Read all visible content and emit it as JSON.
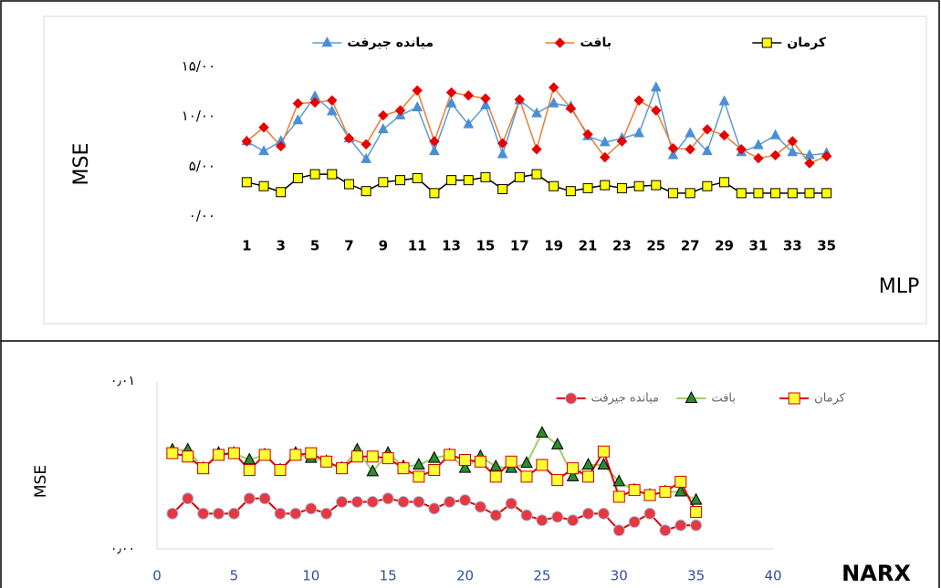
{
  "chart_data": [
    {
      "type": "line",
      "x_label": "MLP",
      "y_label": "MSE",
      "x": [
        1,
        2,
        3,
        4,
        5,
        6,
        7,
        8,
        9,
        10,
        11,
        12,
        13,
        14,
        15,
        16,
        17,
        18,
        19,
        20,
        21,
        22,
        23,
        24,
        25,
        26,
        27,
        28,
        29,
        30,
        31,
        32,
        33,
        34,
        35
      ],
      "xlim": [
        0.5,
        35.5
      ],
      "xticks": [
        1,
        3,
        5,
        7,
        9,
        11,
        13,
        15,
        17,
        19,
        21,
        23,
        25,
        27,
        29,
        31,
        33,
        35
      ],
      "ylim": [
        0,
        15
      ],
      "yticks": [
        {
          "value": 0,
          "label": "۰/۰۰"
        },
        {
          "value": 5,
          "label": "۵/۰۰"
        },
        {
          "value": 10,
          "label": "۱۰/۰۰"
        },
        {
          "value": 15,
          "label": "۱۵/۰۰"
        }
      ],
      "grid": false,
      "series": [
        {
          "name": "میانده جیرفت",
          "color": "#5b9bd5",
          "marker": "triangle",
          "marker_fill": "#4a8fd6",
          "marker_stroke": "#4a8fd6",
          "values": [
            7.5,
            6.5,
            7.5,
            9.6,
            12.0,
            10.5,
            7.8,
            5.7,
            8.7,
            10.1,
            10.9,
            6.5,
            11.3,
            9.2,
            11.1,
            6.2,
            11.6,
            10.3,
            11.3,
            11.0,
            8.0,
            7.4,
            7.8,
            8.3,
            12.9,
            6.1,
            8.3,
            6.5,
            11.5,
            6.4,
            7.1,
            8.1,
            6.4,
            6.1,
            6.3
          ]
        },
        {
          "name": "بافت",
          "color": "#ed7d31",
          "marker": "diamond",
          "marker_fill": "#e60000",
          "marker_stroke": "#e60000",
          "values": [
            7.5,
            8.9,
            7.0,
            11.3,
            11.4,
            11.6,
            7.8,
            7.2,
            10.1,
            10.6,
            12.6,
            7.5,
            12.4,
            12.1,
            11.8,
            7.3,
            11.7,
            6.7,
            12.9,
            10.8,
            8.2,
            5.9,
            7.5,
            11.6,
            10.6,
            6.8,
            6.7,
            8.7,
            8.1,
            6.7,
            5.8,
            6.1,
            7.5,
            5.3,
            6.0
          ]
        },
        {
          "name": "کرمان",
          "color": "#000000",
          "marker": "square",
          "marker_fill": "#ffff00",
          "marker_stroke": "#000000",
          "values": [
            3.4,
            3.0,
            2.4,
            3.8,
            4.2,
            4.2,
            3.2,
            2.5,
            3.4,
            3.6,
            3.8,
            2.3,
            3.6,
            3.6,
            3.9,
            2.7,
            3.9,
            4.2,
            3.0,
            2.5,
            2.8,
            3.1,
            2.8,
            3.0,
            3.1,
            2.3,
            2.3,
            3.0,
            3.4,
            2.3,
            2.3,
            2.3,
            2.3,
            2.3,
            2.3
          ]
        }
      ]
    },
    {
      "type": "line",
      "x_label": "NARX",
      "y_label": "MSE",
      "x": [
        1,
        2,
        3,
        4,
        5,
        6,
        7,
        8,
        9,
        10,
        11,
        12,
        13,
        14,
        15,
        16,
        17,
        18,
        19,
        20,
        21,
        22,
        23,
        24,
        25,
        26,
        27,
        28,
        29,
        30,
        31,
        32,
        33,
        34,
        35
      ],
      "xlim": [
        0,
        40
      ],
      "xticks": [
        0,
        5,
        10,
        15,
        20,
        25,
        30,
        35,
        40
      ],
      "ylim": [
        0,
        0.01
      ],
      "yticks": [
        {
          "value": 0,
          "label": "۰٫۰۰"
        },
        {
          "value": 0.01,
          "label": "۰٫۰۱"
        }
      ],
      "grid": false,
      "series": [
        {
          "name": "میانده جیرفت",
          "color": "#e00000",
          "marker": "circle",
          "marker_fill": "#e8383f",
          "marker_stroke": "#9cc3e6",
          "values": [
            0.0021,
            0.003,
            0.0021,
            0.0021,
            0.0021,
            0.003,
            0.003,
            0.0021,
            0.0021,
            0.0024,
            0.0021,
            0.0028,
            0.0028,
            0.0028,
            0.003,
            0.0028,
            0.0028,
            0.0024,
            0.0028,
            0.0029,
            0.0025,
            0.002,
            0.0027,
            0.002,
            0.0017,
            0.0019,
            0.0017,
            0.0021,
            0.0021,
            0.0011,
            0.0016,
            0.0021,
            0.0011,
            0.0014,
            0.0014
          ]
        },
        {
          "name": "بافت",
          "color": "#9bd168",
          "marker": "triangle",
          "marker_fill": "#2e8b2e",
          "marker_stroke": "#000000",
          "values": [
            0.0059,
            0.0059,
            0.0048,
            0.0057,
            0.0057,
            0.0053,
            0.0056,
            0.0047,
            0.0057,
            0.0054,
            0.0052,
            0.0048,
            0.0059,
            0.0046,
            0.0057,
            0.0049,
            0.005,
            0.0054,
            0.0056,
            0.0048,
            0.0055,
            0.0049,
            0.0048,
            0.0051,
            0.0069,
            0.0062,
            0.0043,
            0.005,
            0.005,
            0.004,
            0.0035,
            0.0032,
            0.0034,
            0.0034,
            0.0029
          ]
        },
        {
          "name": "کرمان",
          "color": "#e00000",
          "marker": "square",
          "marker_fill": "#ffff33",
          "marker_stroke": "#cc0000",
          "values": [
            0.0057,
            0.0055,
            0.0048,
            0.0056,
            0.0057,
            0.0047,
            0.0056,
            0.0047,
            0.0056,
            0.0057,
            0.0052,
            0.0048,
            0.0055,
            0.0055,
            0.0054,
            0.0048,
            0.0043,
            0.0047,
            0.0056,
            0.0053,
            0.0052,
            0.0043,
            0.0052,
            0.0043,
            0.005,
            0.0041,
            0.0048,
            0.0043,
            0.0058,
            0.0031,
            0.0035,
            0.0032,
            0.0034,
            0.004,
            0.0022
          ]
        }
      ]
    }
  ]
}
